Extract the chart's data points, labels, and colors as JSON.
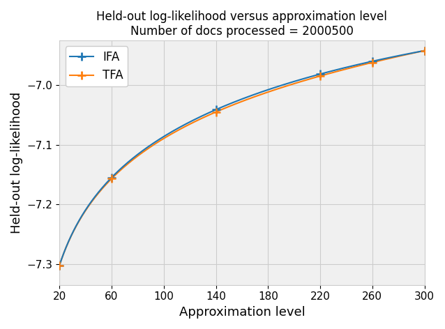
{
  "title_line1": "Held-out log-likelihood versus approximation level",
  "title_line2": "Number of docs processed = 2000500",
  "xlabel": "Approximation level",
  "ylabel": "Held-out log-likelihood",
  "xlim": [
    20,
    300
  ],
  "ylim": [
    -7.335,
    -6.925
  ],
  "xticks": [
    20,
    60,
    100,
    140,
    180,
    220,
    260,
    300
  ],
  "yticks": [
    -7.3,
    -7.2,
    -7.1,
    -7.0
  ],
  "ifa_color": "#1f77b4",
  "tfa_color": "#ff7f0e",
  "linewidth": 1.5,
  "marker_x": [
    20,
    60,
    140,
    220,
    260,
    300
  ],
  "log_fit_x1": 20,
  "log_fit_y1": -7.302,
  "log_fit_x2": 300,
  "log_fit_y2": -6.942,
  "ifa_offsets": [
    0.0,
    0.001,
    0.002,
    0.0015,
    0.001,
    0.0
  ],
  "tfa_offsets": [
    0.0,
    -0.001,
    -0.002,
    -0.0015,
    -0.001,
    0.0
  ],
  "title_fontsize": 12,
  "label_fontsize": 13,
  "tick_fontsize": 11,
  "legend_fontsize": 12,
  "figsize": [
    6.38,
    4.72
  ],
  "dpi": 100
}
